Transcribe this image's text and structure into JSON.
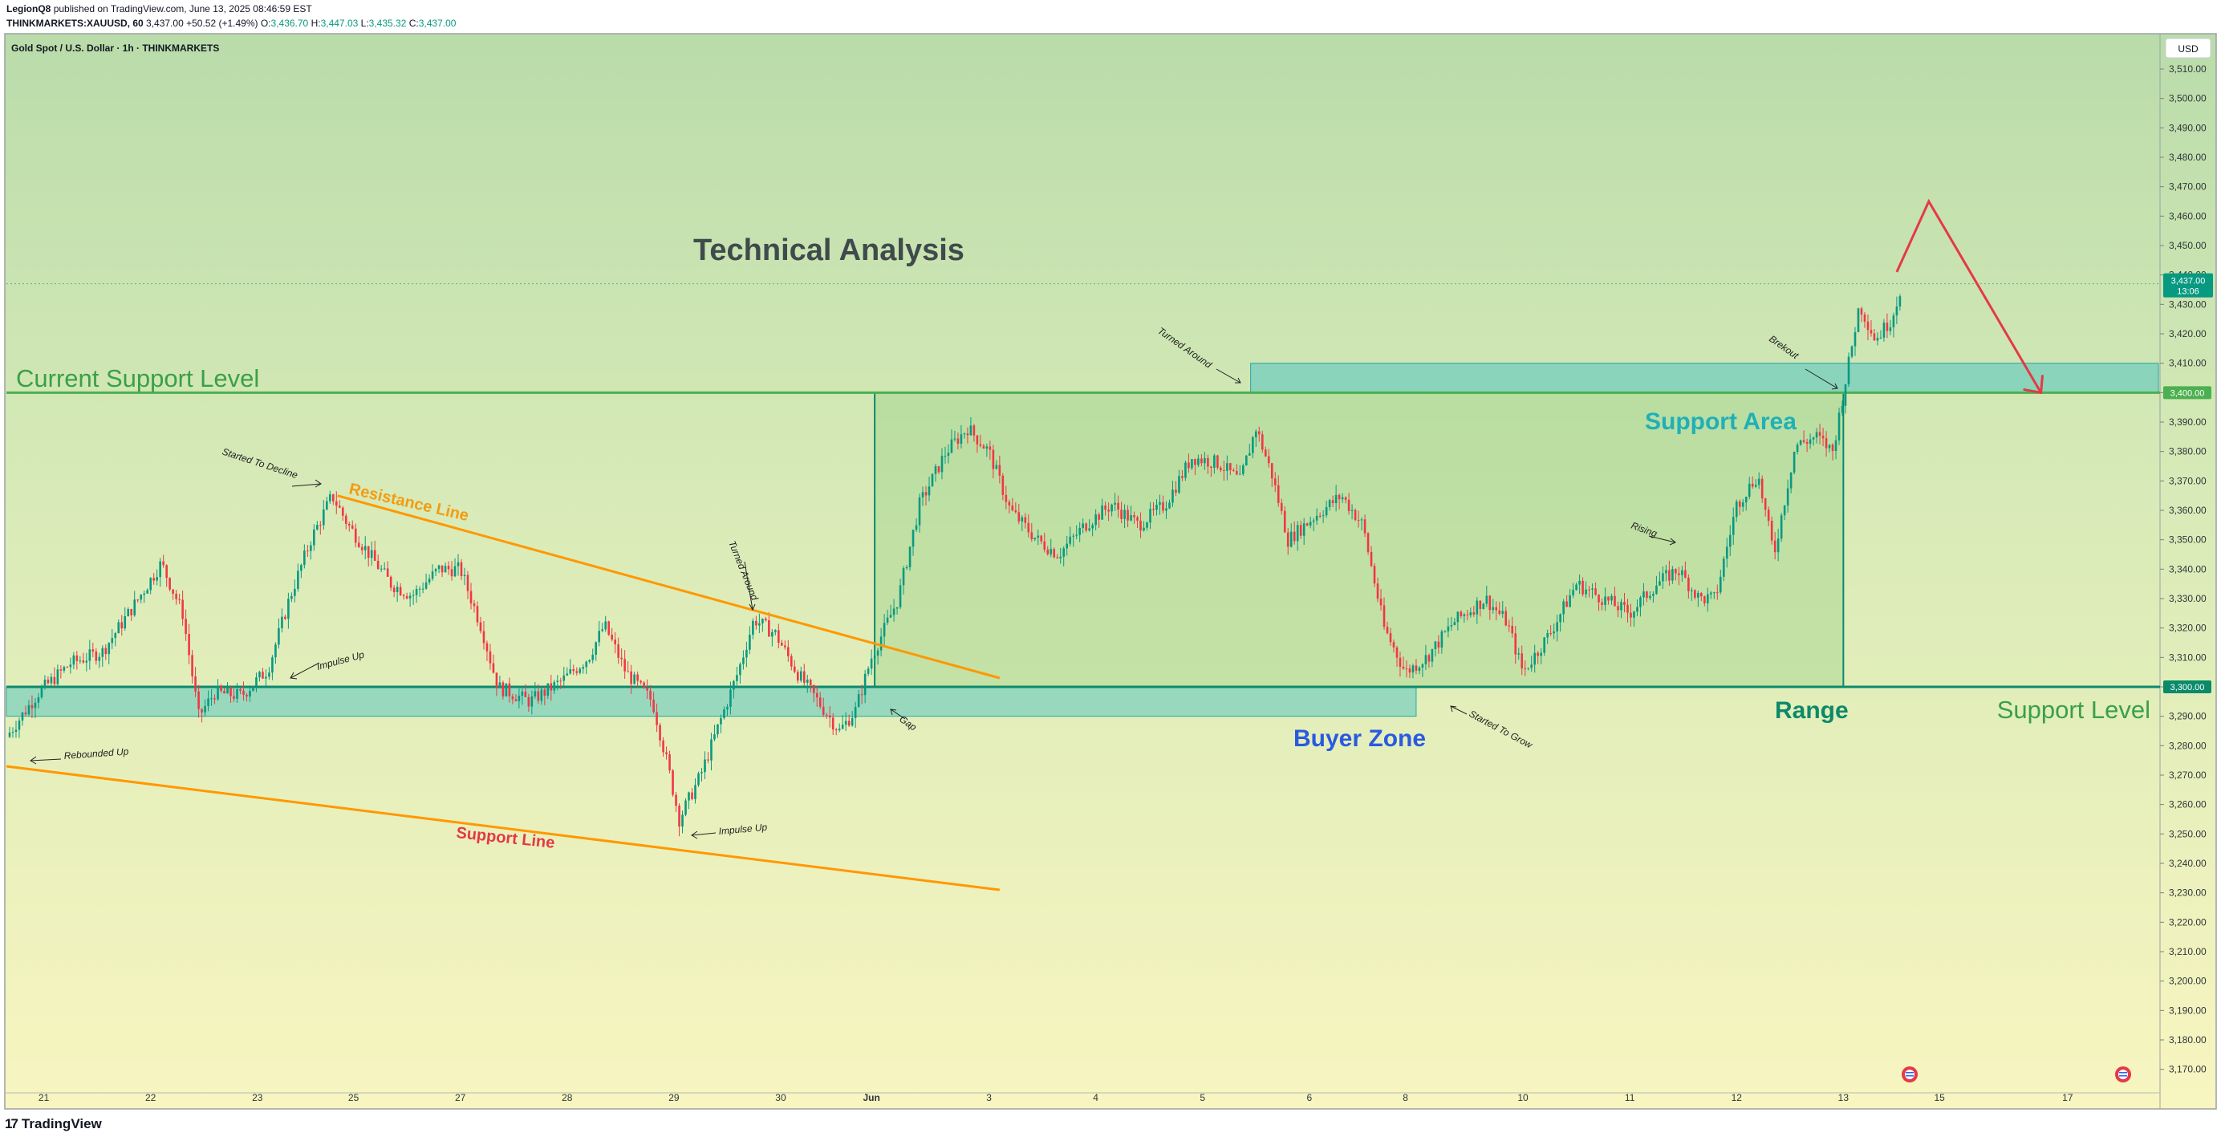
{
  "header": {
    "line1_author": "LegionQ8",
    "line1_rest": "published on TradingView.com, June 13, 2025 08:46:59 EST",
    "symbol": "THINKMARKETS:XAUUSD, 60",
    "last": "3,437.00",
    "change": "+50.52 (+1.49%)",
    "o_label": "O:",
    "o": "3,436.70",
    "h_label": "H:",
    "h": "3,447.03",
    "l_label": "L:",
    "l": "3,435.32",
    "c_label": "C:",
    "c": "3,437.00"
  },
  "legend": "Gold Spot / U.S. Dollar · 1h · THINKMARKETS",
  "currency_button": "USD",
  "price_label": {
    "value": "3,437.00",
    "countdown": "13:06"
  },
  "level_labels": {
    "upper": "3,400.00",
    "lower": "3,300.00"
  },
  "footer": {
    "brand": "TradingView",
    "logo": "17"
  },
  "annotations": {
    "title": "Technical Analysis",
    "current_support": "Current Support Level",
    "support_level": "Support Level",
    "support_area": "Support Area",
    "buyer_zone": "Buyer Zone",
    "range": "Range",
    "resistance_line": "Resistance Line",
    "support_line": "Support Line",
    "started_to_decline": "Started To Decline",
    "turned_around_1": "Turned Around",
    "turned_around_2": "Turned Around",
    "breakout": "Brekout",
    "rising": "Rising",
    "impulse_up_1": "Impulse Up",
    "impulse_up_2": "Impulse Up",
    "rebounded_up": "Rebounded Up",
    "gap": "Gap",
    "started_to_grow": "Started To Grow"
  },
  "colors": {
    "up_candle": "#089981",
    "down_candle": "#f23645",
    "support_green": "#4caf50",
    "zone_teal": "#5bc8c0",
    "trend_orange": "#ff9800",
    "projection_red": "#e53945",
    "buyer_blue": "#2962ff",
    "range_green": "#0b8a6a"
  },
  "chart_data": {
    "type": "candlestick",
    "y_ticks": [
      3170,
      3180,
      3190,
      3200,
      3210,
      3220,
      3230,
      3240,
      3250,
      3260,
      3270,
      3280,
      3290,
      3300,
      3310,
      3320,
      3330,
      3340,
      3350,
      3360,
      3370,
      3380,
      3390,
      3400,
      3410,
      3420,
      3430,
      3440,
      3450,
      3460,
      3470,
      3480,
      3490,
      3500,
      3510
    ],
    "y_tick_labels": [
      "3,170.00",
      "3,180.00",
      "3,190.00",
      "3,200.00",
      "3,210.00",
      "3,220.00",
      "3,230.00",
      "3,240.00",
      "3,250.00",
      "3,260.00",
      "3,270.00",
      "3,280.00",
      "3,290.00",
      "3,300.00",
      "3,310.00",
      "3,320.00",
      "3,330.00",
      "3,340.00",
      "3,350.00",
      "3,360.00",
      "3,370.00",
      "3,380.00",
      "3,390.00",
      "3,400.00",
      "3,410.00",
      "3,420.00",
      "3,430.00",
      "3,440.00",
      "3,450.00",
      "3,460.00",
      "3,470.00",
      "3,480.00",
      "3,490.00",
      "3,500.00",
      "3,510.00"
    ],
    "x_ticks": [
      {
        "label": "21",
        "t": 0.35
      },
      {
        "label": "22",
        "t": 1.35
      },
      {
        "label": "23",
        "t": 2.35
      },
      {
        "label": "25",
        "t": 3.25
      },
      {
        "label": "27",
        "t": 4.25
      },
      {
        "label": "28",
        "t": 5.25
      },
      {
        "label": "29",
        "t": 6.25
      },
      {
        "label": "30",
        "t": 7.25
      },
      {
        "label": "Jun",
        "t": 8.1,
        "bold": true
      },
      {
        "label": "3",
        "t": 9.2
      },
      {
        "label": "4",
        "t": 10.2
      },
      {
        "label": "5",
        "t": 11.2
      },
      {
        "label": "6",
        "t": 12.2
      },
      {
        "label": "8",
        "t": 13.1
      },
      {
        "label": "10",
        "t": 14.2
      },
      {
        "label": "11",
        "t": 15.2
      },
      {
        "label": "12",
        "t": 16.2
      },
      {
        "label": "13",
        "t": 17.2
      },
      {
        "label": "15",
        "t": 18.1
      },
      {
        "label": "17",
        "t": 19.3
      }
    ],
    "x_range": [
      0,
      20.15
    ],
    "y_range": [
      3162,
      3522
    ],
    "last_price": 3437.0,
    "support_level": 3300,
    "current_support_level": 3400,
    "zones": {
      "buyer_zone": {
        "t0": 0.0,
        "t1": 13.2,
        "p_low": 3290,
        "p_high": 3300
      },
      "support_area": {
        "t0": 11.65,
        "t1": 20.15,
        "p_low": 3400,
        "p_high": 3410
      },
      "range": {
        "t0": 8.13,
        "t1": 17.2,
        "p_low": 3300,
        "p_high": 3400
      }
    },
    "trend_lines": {
      "resistance_line": [
        [
          3.1,
          3365
        ],
        [
          9.3,
          3303
        ]
      ],
      "support_line": [
        [
          0.0,
          3273
        ],
        [
          9.3,
          3231
        ]
      ]
    },
    "projection": [
      [
        17.7,
        3441
      ],
      [
        18.0,
        3465
      ],
      [
        19.05,
        3400
      ]
    ],
    "path": [
      [
        0,
        3283
      ],
      [
        0.3,
        3298
      ],
      [
        0.6,
        3308
      ],
      [
        0.9,
        3312
      ],
      [
        1.2,
        3328
      ],
      [
        1.45,
        3342
      ],
      [
        1.65,
        3325
      ],
      [
        1.8,
        3290
      ],
      [
        1.95,
        3298
      ],
      [
        2.2,
        3297
      ],
      [
        2.45,
        3306
      ],
      [
        2.65,
        3330
      ],
      [
        2.85,
        3350
      ],
      [
        3.05,
        3365
      ],
      [
        3.2,
        3355
      ],
      [
        3.4,
        3345
      ],
      [
        3.6,
        3335
      ],
      [
        3.8,
        3331
      ],
      [
        4.05,
        3340
      ],
      [
        4.25,
        3340
      ],
      [
        4.45,
        3320
      ],
      [
        4.6,
        3300
      ],
      [
        4.9,
        3295
      ],
      [
        5.2,
        3302
      ],
      [
        5.45,
        3310
      ],
      [
        5.6,
        3321
      ],
      [
        5.8,
        3305
      ],
      [
        6.05,
        3295
      ],
      [
        6.2,
        3272
      ],
      [
        6.3,
        3255
      ],
      [
        6.5,
        3270
      ],
      [
        6.7,
        3290
      ],
      [
        6.85,
        3305
      ],
      [
        7.0,
        3323
      ],
      [
        7.2,
        3318
      ],
      [
        7.4,
        3305
      ],
      [
        7.6,
        3295
      ],
      [
        7.8,
        3285
      ],
      [
        7.95,
        3292
      ],
      [
        8.1,
        3310
      ],
      [
        8.35,
        3330
      ],
      [
        8.55,
        3362
      ],
      [
        8.8,
        3380
      ],
      [
        9.0,
        3388
      ],
      [
        9.2,
        3380
      ],
      [
        9.4,
        3360
      ],
      [
        9.65,
        3350
      ],
      [
        9.85,
        3345
      ],
      [
        10.1,
        3355
      ],
      [
        10.35,
        3362
      ],
      [
        10.6,
        3355
      ],
      [
        10.85,
        3362
      ],
      [
        11.1,
        3378
      ],
      [
        11.35,
        3376
      ],
      [
        11.55,
        3370
      ],
      [
        11.7,
        3388
      ],
      [
        11.85,
        3372
      ],
      [
        12.0,
        3350
      ],
      [
        12.25,
        3358
      ],
      [
        12.5,
        3365
      ],
      [
        12.7,
        3355
      ],
      [
        12.9,
        3320
      ],
      [
        13.1,
        3305
      ],
      [
        13.3,
        3310
      ],
      [
        13.55,
        3322
      ],
      [
        13.85,
        3330
      ],
      [
        14.05,
        3322
      ],
      [
        14.2,
        3305
      ],
      [
        14.45,
        3318
      ],
      [
        14.7,
        3335
      ],
      [
        14.95,
        3330
      ],
      [
        15.2,
        3325
      ],
      [
        15.45,
        3335
      ],
      [
        15.65,
        3340
      ],
      [
        15.85,
        3330
      ],
      [
        16.0,
        3330
      ],
      [
        16.2,
        3362
      ],
      [
        16.4,
        3372
      ],
      [
        16.55,
        3345
      ],
      [
        16.75,
        3382
      ],
      [
        16.95,
        3385
      ],
      [
        17.1,
        3380
      ],
      [
        17.2,
        3400
      ],
      [
        17.35,
        3430
      ],
      [
        17.5,
        3418
      ],
      [
        17.65,
        3425
      ],
      [
        17.75,
        3437
      ]
    ]
  }
}
